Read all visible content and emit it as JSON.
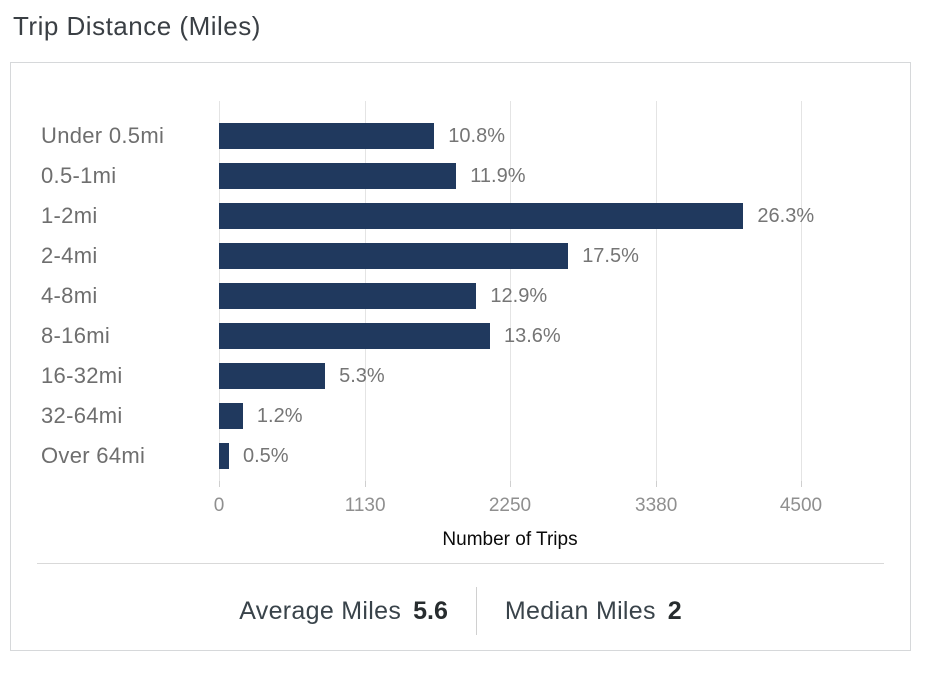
{
  "title": "Trip Distance (Miles)",
  "chart_data": {
    "type": "bar",
    "orientation": "horizontal",
    "title": "Trip Distance (Miles)",
    "xlabel": "Number of Trips",
    "categories": [
      "Under 0.5mi",
      "0.5-1mi",
      "1-2mi",
      "2-4mi",
      "4-8mi",
      "8-16mi",
      "16-32mi",
      "32-64mi",
      "Over 64mi"
    ],
    "percent_labels": [
      "10.8%",
      "11.9%",
      "26.3%",
      "17.5%",
      "12.9%",
      "13.6%",
      "5.3%",
      "1.2%",
      "0.5%"
    ],
    "percentages": [
      10.8,
      11.9,
      26.3,
      17.5,
      12.9,
      13.6,
      5.3,
      1.2,
      0.5
    ],
    "values": [
      1665,
      1835,
      4055,
      2700,
      1990,
      2095,
      820,
      185,
      77
    ],
    "values_note": "trip counts estimated from bar lengths against gridlines",
    "x_ticks": [
      "0",
      "1130",
      "2250",
      "3380",
      "4500"
    ],
    "x_tick_values": [
      0,
      1130,
      2250,
      3380,
      4500
    ],
    "xlim": [
      0,
      4500
    ],
    "grid": "vertical",
    "legend_position": "none",
    "bar_color": "#20395e"
  },
  "footer": {
    "average_label": "Average Miles",
    "average_value": "5.6",
    "median_label": "Median Miles",
    "median_value": "2"
  },
  "colors": {
    "bar": "#20395e",
    "grid_line": "#e4e4e4",
    "category_label": "#6e6e6e",
    "percent_label": "#757575",
    "tick_label": "#8f8f8f",
    "axis_label": "#0a0a0a",
    "title": "#3a3f44",
    "card_border": "#d6d8da",
    "divider": "#d9d9d9",
    "footer_label": "#39434a",
    "footer_value": "#272c2e"
  }
}
